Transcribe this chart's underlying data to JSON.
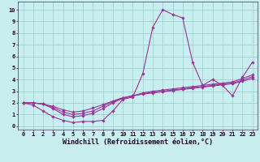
{
  "bg_color": "#c8eef0",
  "plot_bg_color": "#c8eef0",
  "line_color": "#993399",
  "grid_color": "#99cccc",
  "xlabel": "Windchill (Refroidissement éolien,°C)",
  "xlabel_fontsize": 6.0,
  "xtick_labels": [
    "0",
    "1",
    "2",
    "3",
    "4",
    "5",
    "6",
    "7",
    "8",
    "9",
    "10",
    "11",
    "12",
    "13",
    "14",
    "15",
    "16",
    "17",
    "18",
    "19",
    "20",
    "21",
    "22",
    "23"
  ],
  "ytick_labels": [
    "0",
    "1",
    "2",
    "3",
    "4",
    "5",
    "6",
    "7",
    "8",
    "9",
    "10"
  ],
  "xlim": [
    -0.5,
    23.5
  ],
  "ylim": [
    -0.3,
    10.7
  ],
  "lines": [
    [
      2.0,
      1.8,
      1.3,
      0.8,
      0.5,
      0.3,
      0.4,
      0.4,
      0.5,
      1.3,
      2.3,
      2.5,
      4.5,
      8.5,
      10.0,
      9.6,
      9.3,
      5.5,
      3.5,
      4.0,
      3.5,
      2.6,
      4.2,
      5.5
    ],
    [
      2.0,
      2.0,
      1.9,
      1.5,
      1.0,
      0.8,
      0.9,
      1.1,
      1.5,
      2.0,
      2.4,
      2.6,
      2.85,
      3.0,
      3.1,
      3.2,
      3.3,
      3.4,
      3.5,
      3.6,
      3.7,
      3.8,
      4.1,
      4.4
    ],
    [
      2.0,
      2.0,
      1.9,
      1.6,
      1.2,
      1.0,
      1.1,
      1.3,
      1.7,
      2.1,
      2.4,
      2.6,
      2.8,
      2.9,
      3.0,
      3.1,
      3.2,
      3.3,
      3.4,
      3.5,
      3.6,
      3.7,
      3.95,
      4.25
    ],
    [
      2.0,
      2.0,
      1.9,
      1.7,
      1.4,
      1.2,
      1.3,
      1.55,
      1.85,
      2.15,
      2.45,
      2.6,
      2.75,
      2.85,
      2.95,
      3.05,
      3.15,
      3.25,
      3.35,
      3.45,
      3.55,
      3.65,
      3.85,
      4.1
    ]
  ]
}
